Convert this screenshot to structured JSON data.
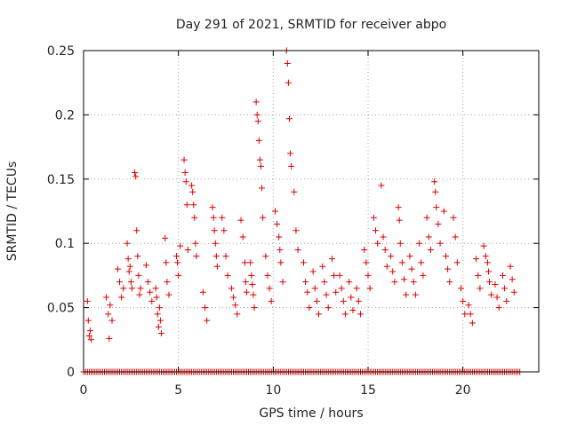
{
  "chart_data": {
    "type": "scatter",
    "title": "Day 291 of 2021, SRMTID for receiver abpo",
    "xlabel": "GPS time / hours",
    "ylabel": "SRMTID / TECUs",
    "xlim": [
      0,
      24
    ],
    "ylim": [
      0,
      0.25
    ],
    "xticks": [
      0,
      5,
      10,
      15,
      20
    ],
    "yticks": [
      0,
      0.05,
      0.1,
      0.15,
      0.2,
      0.25
    ],
    "xtick_labels": [
      "0",
      "5",
      "10",
      "15",
      "20"
    ],
    "ytick_labels": [
      "0",
      "0.05",
      "0.1",
      "0.15",
      "0.2",
      "0.25"
    ],
    "grid": true,
    "marker": "+",
    "color": "#dd0000",
    "series": [
      {
        "name": "SRMTID",
        "x": [
          0.2,
          0.25,
          0.3,
          0.35,
          0.4,
          1.2,
          1.3,
          1.35,
          1.4,
          1.5,
          1.8,
          1.9,
          2.0,
          2.1,
          2.3,
          2.35,
          2.4,
          2.45,
          2.5,
          2.55,
          2.7,
          2.75,
          2.8,
          2.85,
          2.9,
          2.95,
          3.0,
          3.3,
          3.4,
          3.5,
          3.6,
          3.8,
          3.85,
          3.9,
          3.95,
          4.0,
          4.05,
          4.1,
          4.3,
          4.35,
          4.4,
          4.5,
          4.9,
          4.95,
          5.0,
          5.1,
          5.3,
          5.35,
          5.4,
          5.45,
          5.5,
          5.7,
          5.75,
          5.8,
          5.85,
          5.9,
          5.95,
          6.3,
          6.4,
          6.5,
          6.8,
          6.85,
          6.9,
          6.95,
          7.0,
          7.05,
          7.3,
          7.4,
          7.5,
          7.6,
          7.8,
          7.9,
          8.0,
          8.1,
          8.3,
          8.4,
          8.5,
          8.55,
          8.6,
          8.8,
          8.85,
          8.9,
          8.95,
          9.0,
          9.1,
          9.15,
          9.2,
          9.25,
          9.3,
          9.35,
          9.4,
          9.45,
          9.6,
          9.7,
          9.8,
          9.9,
          10.1,
          10.2,
          10.3,
          10.35,
          10.4,
          10.5,
          10.7,
          10.75,
          10.8,
          10.85,
          10.9,
          10.95,
          11.1,
          11.2,
          11.3,
          11.6,
          11.7,
          11.8,
          11.9,
          12.1,
          12.2,
          12.3,
          12.4,
          12.6,
          12.7,
          12.8,
          12.9,
          13.1,
          13.2,
          13.3,
          13.5,
          13.6,
          13.7,
          13.8,
          14.0,
          14.1,
          14.2,
          14.4,
          14.5,
          14.6,
          14.8,
          14.9,
          15.0,
          15.1,
          15.3,
          15.4,
          15.5,
          15.7,
          15.8,
          15.9,
          16.0,
          16.2,
          16.3,
          16.4,
          16.6,
          16.65,
          16.7,
          16.8,
          16.9,
          17.0,
          17.2,
          17.3,
          17.4,
          17.5,
          17.7,
          17.8,
          17.9,
          18.1,
          18.2,
          18.3,
          18.5,
          18.55,
          18.6,
          18.7,
          18.8,
          19.0,
          19.1,
          19.2,
          19.3,
          19.5,
          19.6,
          19.7,
          19.9,
          20.0,
          20.1,
          20.3,
          20.4,
          20.5,
          20.7,
          20.8,
          20.9,
          21.1,
          21.2,
          21.3,
          21.35,
          21.4,
          21.5,
          21.7,
          21.8,
          21.9,
          22.1,
          22.2,
          22.3,
          22.5,
          22.6,
          22.7
        ],
        "y": [
          0.055,
          0.04,
          0.028,
          0.032,
          0.025,
          0.058,
          0.045,
          0.026,
          0.052,
          0.04,
          0.08,
          0.07,
          0.058,
          0.065,
          0.1,
          0.088,
          0.078,
          0.082,
          0.07,
          0.065,
          0.155,
          0.152,
          0.11,
          0.09,
          0.075,
          0.06,
          0.065,
          0.083,
          0.07,
          0.062,
          0.055,
          0.065,
          0.058,
          0.045,
          0.035,
          0.05,
          0.04,
          0.03,
          0.104,
          0.085,
          0.07,
          0.06,
          0.09,
          0.085,
          0.075,
          0.098,
          0.165,
          0.155,
          0.148,
          0.13,
          0.095,
          0.145,
          0.14,
          0.13,
          0.12,
          0.1,
          0.09,
          0.062,
          0.05,
          0.04,
          0.128,
          0.12,
          0.11,
          0.1,
          0.09,
          0.082,
          0.12,
          0.11,
          0.09,
          0.075,
          0.065,
          0.058,
          0.052,
          0.045,
          0.118,
          0.105,
          0.085,
          0.07,
          0.062,
          0.085,
          0.075,
          0.068,
          0.06,
          0.05,
          0.21,
          0.2,
          0.195,
          0.18,
          0.165,
          0.16,
          0.143,
          0.12,
          0.09,
          0.075,
          0.065,
          0.055,
          0.125,
          0.115,
          0.105,
          0.095,
          0.085,
          0.07,
          0.25,
          0.24,
          0.225,
          0.197,
          0.17,
          0.16,
          0.14,
          0.11,
          0.095,
          0.085,
          0.07,
          0.062,
          0.05,
          0.078,
          0.065,
          0.055,
          0.045,
          0.082,
          0.07,
          0.06,
          0.05,
          0.088,
          0.075,
          0.062,
          0.075,
          0.065,
          0.055,
          0.045,
          0.07,
          0.058,
          0.048,
          0.065,
          0.055,
          0.045,
          0.095,
          0.085,
          0.075,
          0.065,
          0.12,
          0.11,
          0.1,
          0.145,
          0.105,
          0.095,
          0.082,
          0.09,
          0.078,
          0.07,
          0.128,
          0.118,
          0.1,
          0.085,
          0.072,
          0.06,
          0.09,
          0.08,
          0.07,
          0.06,
          0.1,
          0.085,
          0.075,
          0.12,
          0.105,
          0.095,
          0.148,
          0.14,
          0.128,
          0.115,
          0.1,
          0.125,
          0.09,
          0.08,
          0.07,
          0.12,
          0.105,
          0.085,
          0.065,
          0.055,
          0.045,
          0.052,
          0.045,
          0.038,
          0.088,
          0.075,
          0.065,
          0.098,
          0.09,
          0.085,
          0.078,
          0.07,
          0.06,
          0.068,
          0.058,
          0.05,
          0.075,
          0.065,
          0.055,
          0.082,
          0.072,
          0.062
        ]
      },
      {
        "name": "zero baseline",
        "x_range": [
          0,
          23
        ],
        "step": 0.1,
        "y": 0
      }
    ]
  }
}
